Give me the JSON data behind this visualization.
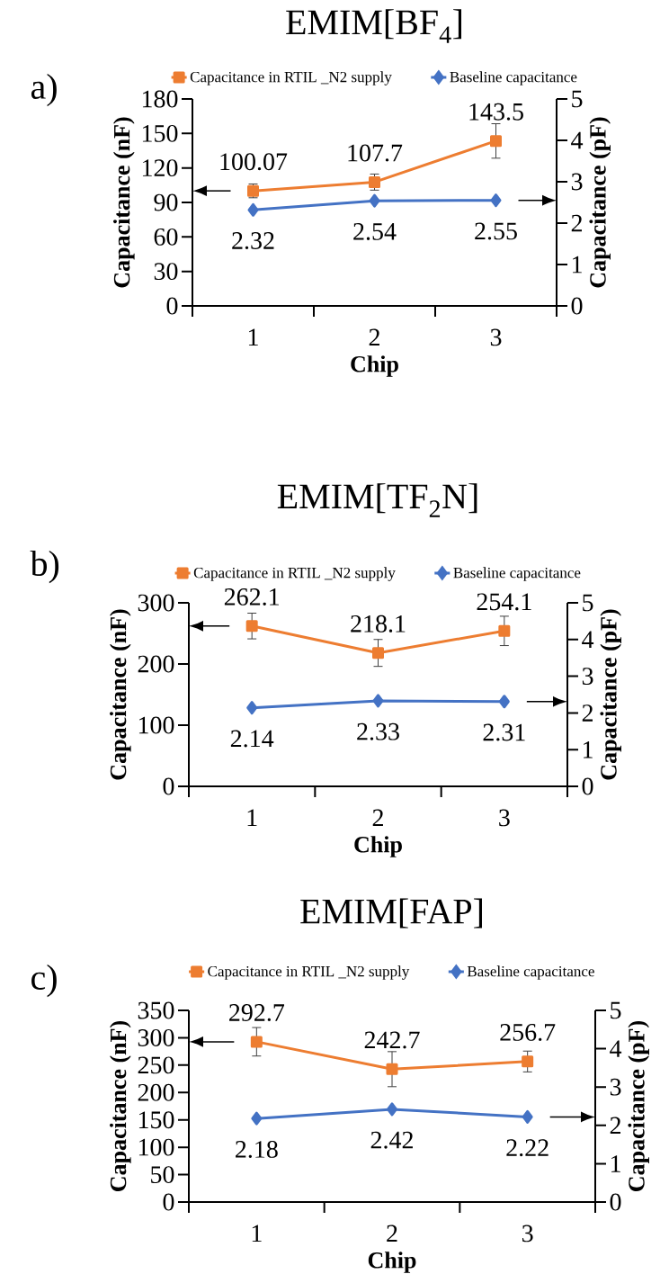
{
  "chart_data": [
    {
      "type": "line",
      "title": "EMIM[BF$_{4}$]",
      "annotations": [
        "a)"
      ],
      "categories": [
        "1",
        "2",
        "3"
      ],
      "xlabel": "Chip",
      "ylabel": "Capacitance (nF)",
      "y2label": "Capacitance (pF)",
      "ylim": [
        0,
        180
      ],
      "yticks": [
        0,
        30,
        60,
        90,
        120,
        150,
        180
      ],
      "y2lim": [
        0,
        5
      ],
      "y2ticks": [
        0,
        1,
        2,
        3,
        4,
        5
      ],
      "legend": "top",
      "data_labels": true,
      "series": [
        {
          "name": "Capacitance in RTIL _N2 supply",
          "color": "#ed7d31",
          "marker": "square",
          "values": [
            100.07,
            107.7,
            143.5
          ],
          "errors": [
            6,
            7,
            15
          ]
        },
        {
          "name": "Baseline capacitance",
          "color": "#4472c4",
          "marker": "diamond",
          "axis": "y2",
          "values": [
            2.32,
            2.54,
            2.55
          ]
        }
      ]
    },
    {
      "type": "line",
      "title": "EMIM[TF$_{2}$N]",
      "annotations": [
        "b)"
      ],
      "categories": [
        "1",
        "2",
        "3"
      ],
      "xlabel": "Chip",
      "ylabel": "Capacitance (nF)",
      "y2label": "Capacitance (pF)",
      "ylim": [
        0,
        300
      ],
      "yticks": [
        0,
        100,
        200,
        300
      ],
      "y2lim": [
        0,
        5
      ],
      "y2ticks": [
        0,
        1,
        2,
        3,
        4,
        5
      ],
      "legend": "top",
      "data_labels": true,
      "series": [
        {
          "name": "Capacitance in RTIL _N2 supply",
          "color": "#ed7d31",
          "marker": "square",
          "values": [
            262.1,
            218.1,
            254.1
          ],
          "errors": [
            21,
            22,
            24
          ]
        },
        {
          "name": "Baseline capacitance",
          "color": "#4472c4",
          "marker": "diamond",
          "axis": "y2",
          "values": [
            2.14,
            2.33,
            2.31
          ]
        }
      ]
    },
    {
      "type": "line",
      "title": "EMIM[FAP]",
      "annotations": [
        "c)"
      ],
      "categories": [
        "1",
        "2",
        "3"
      ],
      "xlabel": "Chip",
      "ylabel": "Capacitance (nF)",
      "y2label": "Capacitance (pF)",
      "ylim": [
        0,
        350
      ],
      "yticks": [
        0,
        50,
        100,
        150,
        200,
        250,
        300,
        350
      ],
      "y2lim": [
        0,
        5
      ],
      "y2ticks": [
        0,
        1,
        2,
        3,
        4,
        5
      ],
      "legend": "top",
      "data_labels": true,
      "series": [
        {
          "name": "Capacitance in RTIL _N2 supply",
          "color": "#ed7d31",
          "marker": "square",
          "values": [
            292.7,
            242.7,
            256.7
          ],
          "errors": [
            26,
            32,
            19
          ]
        },
        {
          "name": "Baseline capacitance",
          "color": "#4472c4",
          "marker": "diamond",
          "axis": "y2",
          "values": [
            2.18,
            2.42,
            2.22
          ]
        }
      ]
    }
  ]
}
